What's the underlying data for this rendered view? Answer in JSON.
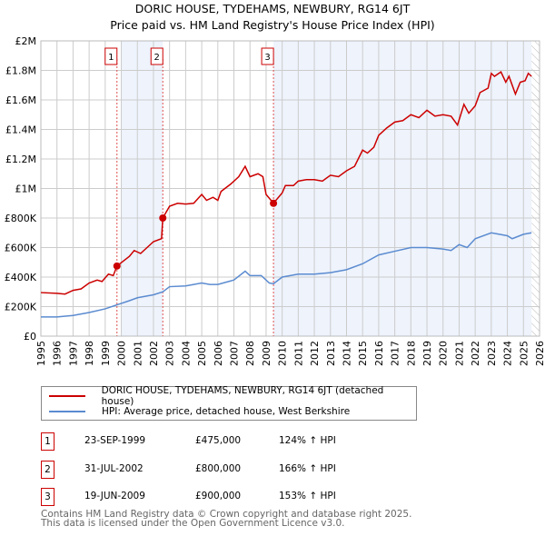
{
  "chart_data": {
    "type": "line",
    "title": "DORIC HOUSE, TYDEHAMS, NEWBURY, RG14 6JT",
    "subtitle": "Price paid vs. HM Land Registry's House Price Index (HPI)",
    "xlim": [
      1995,
      2026
    ],
    "ylim": [
      0,
      2000000
    ],
    "x_ticks": [
      "1995",
      "1996",
      "1997",
      "1998",
      "1999",
      "2000",
      "2001",
      "2002",
      "2003",
      "2004",
      "2005",
      "2006",
      "2007",
      "2008",
      "2009",
      "2010",
      "2011",
      "2012",
      "2013",
      "2014",
      "2015",
      "2016",
      "2017",
      "2018",
      "2019",
      "2020",
      "2021",
      "2022",
      "2023",
      "2024",
      "2025",
      "2026"
    ],
    "y_ticks": [
      {
        "v": 0,
        "l": "£0"
      },
      {
        "v": 200000,
        "l": "£200K"
      },
      {
        "v": 400000,
        "l": "£400K"
      },
      {
        "v": 600000,
        "l": "£600K"
      },
      {
        "v": 800000,
        "l": "£800K"
      },
      {
        "v": 1000000,
        "l": "£1M"
      },
      {
        "v": 1200000,
        "l": "£1.2M"
      },
      {
        "v": 1400000,
        "l": "£1.4M"
      },
      {
        "v": 1600000,
        "l": "£1.6M"
      },
      {
        "v": 1800000,
        "l": "£1.8M"
      },
      {
        "v": 2000000,
        "l": "£2M"
      }
    ],
    "grid": true,
    "series": [
      {
        "name": "DORIC HOUSE, TYDEHAMS, NEWBURY, RG14 6JT (detached house)",
        "color": "#cc0000",
        "points": [
          [
            1995,
            295000
          ],
          [
            1996,
            290000
          ],
          [
            1996.5,
            285000
          ],
          [
            1997,
            310000
          ],
          [
            1997.5,
            320000
          ],
          [
            1998,
            360000
          ],
          [
            1998.5,
            380000
          ],
          [
            1998.8,
            370000
          ],
          [
            1999.2,
            420000
          ],
          [
            1999.5,
            410000
          ],
          [
            1999.73,
            475000
          ],
          [
            2000.5,
            540000
          ],
          [
            2000.8,
            580000
          ],
          [
            2001.2,
            560000
          ],
          [
            2001.8,
            620000
          ],
          [
            2002,
            640000
          ],
          [
            2002.5,
            660000
          ],
          [
            2002.58,
            800000
          ],
          [
            2003,
            880000
          ],
          [
            2003.5,
            900000
          ],
          [
            2004,
            895000
          ],
          [
            2004.5,
            900000
          ],
          [
            2005,
            960000
          ],
          [
            2005.3,
            920000
          ],
          [
            2005.7,
            940000
          ],
          [
            2006,
            920000
          ],
          [
            2006.2,
            980000
          ],
          [
            2006.8,
            1030000
          ],
          [
            2007.3,
            1080000
          ],
          [
            2007.7,
            1150000
          ],
          [
            2008,
            1080000
          ],
          [
            2008.5,
            1100000
          ],
          [
            2008.8,
            1080000
          ],
          [
            2009,
            960000
          ],
          [
            2009.46,
            900000
          ],
          [
            2010,
            970000
          ],
          [
            2010.2,
            1020000
          ],
          [
            2010.7,
            1020000
          ],
          [
            2011,
            1050000
          ],
          [
            2011.5,
            1060000
          ],
          [
            2012,
            1060000
          ],
          [
            2012.5,
            1050000
          ],
          [
            2013,
            1090000
          ],
          [
            2013.5,
            1080000
          ],
          [
            2014,
            1120000
          ],
          [
            2014.5,
            1150000
          ],
          [
            2015,
            1260000
          ],
          [
            2015.3,
            1240000
          ],
          [
            2015.7,
            1280000
          ],
          [
            2016,
            1360000
          ],
          [
            2016.5,
            1410000
          ],
          [
            2017,
            1450000
          ],
          [
            2017.5,
            1460000
          ],
          [
            2018,
            1500000
          ],
          [
            2018.5,
            1480000
          ],
          [
            2019,
            1530000
          ],
          [
            2019.5,
            1490000
          ],
          [
            2020,
            1500000
          ],
          [
            2020.5,
            1490000
          ],
          [
            2020.9,
            1430000
          ],
          [
            2021.3,
            1570000
          ],
          [
            2021.6,
            1510000
          ],
          [
            2022,
            1560000
          ],
          [
            2022.3,
            1650000
          ],
          [
            2022.8,
            1680000
          ],
          [
            2023,
            1780000
          ],
          [
            2023.2,
            1760000
          ],
          [
            2023.6,
            1790000
          ],
          [
            2023.9,
            1720000
          ],
          [
            2024.1,
            1760000
          ],
          [
            2024.5,
            1640000
          ],
          [
            2024.8,
            1720000
          ],
          [
            2025.1,
            1730000
          ],
          [
            2025.3,
            1780000
          ],
          [
            2025.5,
            1760000
          ]
        ]
      },
      {
        "name": "HPI: Average price, detached house, West Berkshire",
        "color": "#5b8bd0",
        "points": [
          [
            1995,
            130000
          ],
          [
            1996,
            130000
          ],
          [
            1997,
            140000
          ],
          [
            1998,
            160000
          ],
          [
            1999,
            185000
          ],
          [
            1999.73,
            212000
          ],
          [
            2000.5,
            240000
          ],
          [
            2001,
            260000
          ],
          [
            2002,
            280000
          ],
          [
            2002.58,
            300000
          ],
          [
            2003,
            335000
          ],
          [
            2004,
            340000
          ],
          [
            2005,
            360000
          ],
          [
            2005.5,
            350000
          ],
          [
            2006,
            350000
          ],
          [
            2007,
            380000
          ],
          [
            2007.7,
            440000
          ],
          [
            2008,
            410000
          ],
          [
            2008.7,
            410000
          ],
          [
            2009.2,
            360000
          ],
          [
            2009.46,
            355000
          ],
          [
            2010,
            400000
          ],
          [
            2011,
            420000
          ],
          [
            2012,
            420000
          ],
          [
            2013,
            430000
          ],
          [
            2014,
            450000
          ],
          [
            2015,
            490000
          ],
          [
            2016,
            550000
          ],
          [
            2017,
            575000
          ],
          [
            2018,
            600000
          ],
          [
            2019,
            600000
          ],
          [
            2020,
            590000
          ],
          [
            2020.5,
            580000
          ],
          [
            2021,
            620000
          ],
          [
            2021.5,
            600000
          ],
          [
            2022,
            660000
          ],
          [
            2023,
            700000
          ],
          [
            2024,
            680000
          ],
          [
            2024.3,
            660000
          ],
          [
            2025,
            690000
          ],
          [
            2025.5,
            700000
          ]
        ]
      }
    ],
    "sales": [
      {
        "id": "1",
        "x": 1999.73,
        "price": 475000,
        "date": "23-SEP-1999",
        "price_label": "£475,000",
        "hpi": "124% ↑ HPI"
      },
      {
        "id": "2",
        "x": 2002.58,
        "price": 800000,
        "date": "31-JUL-2002",
        "price_label": "£800,000",
        "hpi": "166% ↑ HPI"
      },
      {
        "id": "3",
        "x": 2009.46,
        "price": 900000,
        "date": "19-JUN-2009",
        "price_label": "£900,000",
        "hpi": "153% ↑ HPI"
      }
    ],
    "data_end": 2025.5,
    "legend_placement": "below"
  },
  "footer": [
    "Contains HM Land Registry data © Crown copyright and database right 2025.",
    "This data is licensed under the Open Government Licence v3.0."
  ]
}
